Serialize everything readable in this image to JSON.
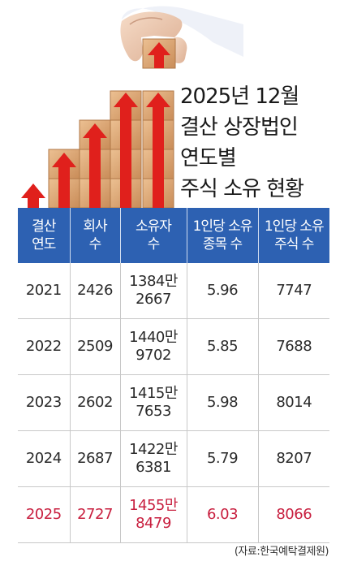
{
  "title_lines": [
    "2025년 12월",
    "결산 상장법인",
    "연도별",
    "주식 소유 현황"
  ],
  "chart_data": {
    "type": "table",
    "title": "2025년 12월 결산 상장법인 연도별 주식 소유 현황",
    "columns": [
      [
        "결산",
        "연도"
      ],
      [
        "회사",
        "수"
      ],
      [
        "소유자",
        "수"
      ],
      [
        "1인당 소유",
        "종목 수"
      ],
      [
        "1인당 소유",
        "주식 수"
      ]
    ],
    "rows": [
      {
        "year": "2021",
        "companies": "2426",
        "owners": [
          "1384만",
          "2667"
        ],
        "stocks_per_person": "5.96",
        "shares_per_person": "7747"
      },
      {
        "year": "2022",
        "companies": "2509",
        "owners": [
          "1440만",
          "9702"
        ],
        "stocks_per_person": "5.85",
        "shares_per_person": "7688"
      },
      {
        "year": "2023",
        "companies": "2602",
        "owners": [
          "1415만",
          "7653"
        ],
        "stocks_per_person": "5.98",
        "shares_per_person": "8014"
      },
      {
        "year": "2024",
        "companies": "2687",
        "owners": [
          "1422만",
          "6381"
        ],
        "stocks_per_person": "5.79",
        "shares_per_person": "8207"
      },
      {
        "year": "2025",
        "companies": "2727",
        "owners": [
          "1455만",
          "8479"
        ],
        "stocks_per_person": "6.03",
        "shares_per_person": "8066"
      }
    ],
    "highlight_row": 4
  },
  "source": "(자료:한국예탁결제원)",
  "colors": {
    "header_bg": "#2d61b2",
    "highlight_text": "#c81f3f",
    "block": "#dca474",
    "arrow": "#e0201c"
  },
  "illustration": {
    "icons": [
      "wooden-block-icon",
      "red-arrow-icon",
      "hand-icon"
    ]
  }
}
